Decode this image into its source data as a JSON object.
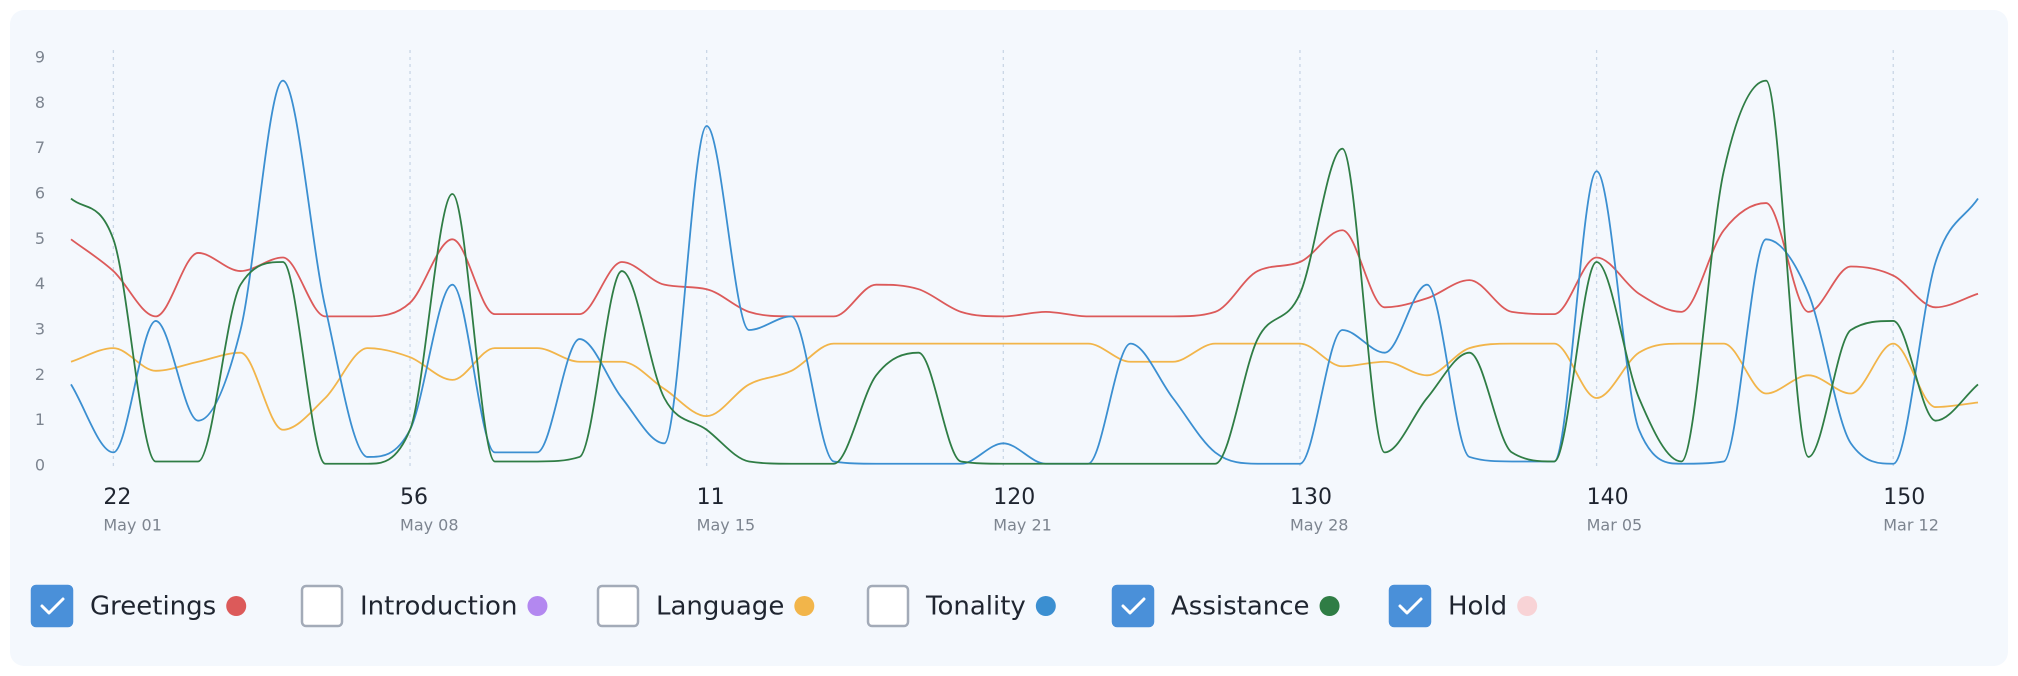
{
  "chart_data": {
    "type": "line",
    "categories": [
      null,
      "22",
      null,
      null,
      null,
      null,
      null,
      null,
      "56",
      null,
      null,
      null,
      null,
      null,
      null,
      "11",
      null,
      null,
      null,
      null,
      null,
      null,
      "120",
      null,
      null,
      null,
      null,
      null,
      null,
      "130",
      null,
      null,
      null,
      null,
      null,
      null,
      "140",
      null,
      null,
      null,
      null,
      null,
      null,
      "150",
      null,
      null
    ],
    "category_dates": [
      null,
      "May 01",
      null,
      null,
      null,
      null,
      null,
      null,
      "May 08",
      null,
      null,
      null,
      null,
      null,
      null,
      "May 15",
      null,
      null,
      null,
      null,
      null,
      null,
      "May 21",
      null,
      null,
      null,
      null,
      null,
      null,
      "May 28",
      null,
      null,
      null,
      null,
      null,
      null,
      "Mar 05",
      null,
      null,
      null,
      null,
      null,
      null,
      "Mar 12",
      null,
      null
    ],
    "ylim": [
      0,
      9
    ],
    "yticks": [
      0,
      1,
      2,
      3,
      4,
      5,
      6,
      7,
      8,
      9
    ],
    "xgrid": true,
    "series": [
      {
        "name": "Greetings",
        "color": "#dc5a5a",
        "checked": true,
        "values": [
          5.0,
          4.3,
          3.3,
          4.7,
          4.3,
          4.6,
          3.3,
          3.3,
          3.6,
          5.0,
          3.35,
          3.35,
          3.35,
          4.5,
          4.0,
          3.9,
          3.4,
          3.3,
          3.3,
          4.0,
          3.9,
          3.4,
          3.3,
          3.4,
          3.3,
          3.3,
          3.3,
          3.4,
          4.3,
          4.5,
          5.2,
          3.5,
          3.7,
          4.1,
          3.4,
          3.35,
          4.6,
          3.8,
          3.4,
          5.2,
          5.8,
          3.4,
          4.4,
          4.2,
          3.5,
          3.8
        ]
      },
      {
        "name": "Introduction",
        "color": "#b388f0",
        "checked": false
      },
      {
        "name": "Language",
        "color": "#f2b54a",
        "checked": false,
        "values": [
          2.3,
          2.6,
          2.1,
          2.3,
          2.5,
          0.8,
          1.5,
          2.6,
          2.4,
          1.9,
          2.6,
          2.6,
          2.3,
          2.3,
          1.7,
          1.1,
          1.8,
          2.1,
          2.7,
          2.7,
          2.7,
          2.7,
          2.7,
          2.7,
          2.7,
          2.3,
          2.3,
          2.7,
          2.7,
          2.7,
          2.2,
          2.3,
          2.0,
          2.6,
          2.7,
          2.7,
          1.5,
          2.5,
          2.7,
          2.7,
          1.6,
          2.0,
          1.6,
          2.7,
          1.3,
          1.4
        ]
      },
      {
        "name": "Tonality",
        "color": "#3b8fd1",
        "checked": false,
        "values": [
          1.8,
          0.3,
          3.2,
          1.0,
          3.0,
          8.5,
          3.5,
          0.2,
          0.8,
          4.0,
          0.3,
          0.3,
          2.8,
          1.5,
          0.5,
          7.5,
          3.0,
          3.3,
          0.1,
          0.05,
          0.05,
          0.05,
          0.5,
          0.05,
          0.05,
          2.7,
          1.5,
          0.3,
          0.05,
          0.05,
          3.0,
          2.5,
          4.0,
          0.2,
          0.1,
          0.1,
          6.5,
          0.8,
          0.05,
          0.1,
          5.0,
          3.8,
          0.5,
          0.05,
          4.5,
          5.9
        ]
      },
      {
        "name": "Assistance",
        "color": "#2f7d45",
        "checked": true,
        "values": [
          5.9,
          5.0,
          0.1,
          0.1,
          4.0,
          4.5,
          0.05,
          0.05,
          0.8,
          6.0,
          0.1,
          0.1,
          0.2,
          4.3,
          1.5,
          0.8,
          0.1,
          0.05,
          0.05,
          2.0,
          2.5,
          0.1,
          0.05,
          0.05,
          0.05,
          0.05,
          0.05,
          0.05,
          2.8,
          3.8,
          7.0,
          0.3,
          1.5,
          2.5,
          0.3,
          0.1,
          4.5,
          1.5,
          0.1,
          6.5,
          8.5,
          0.2,
          3.0,
          3.2,
          1.0,
          1.8
        ]
      },
      {
        "name": "Hold",
        "color": "#f8d3d6",
        "checked": true
      }
    ]
  }
}
